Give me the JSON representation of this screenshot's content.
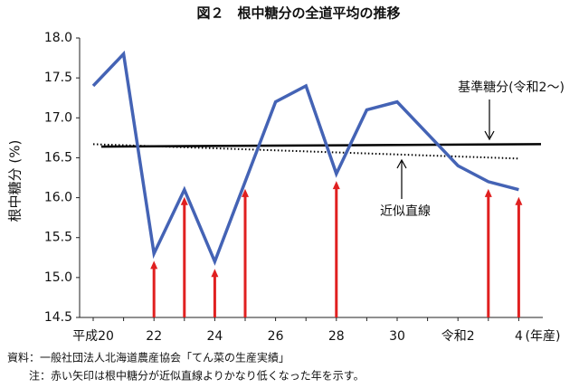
{
  "chart_data": {
    "type": "line",
    "title": "図２　根中糖分の全道平均の推移",
    "categories": [
      "平成20",
      null,
      "22",
      null,
      "24",
      null,
      "26",
      null,
      "28",
      null,
      "30",
      null,
      "令和2",
      null,
      "4"
    ],
    "x_label": "(年産)",
    "y_label": "根中糖分 (%)",
    "series": [
      {
        "color": "#4463b5",
        "values": [
          17.4,
          17.8,
          15.3,
          16.1,
          15.2,
          16.2,
          17.2,
          17.4,
          16.3,
          17.1,
          17.2,
          16.8,
          16.4,
          16.2,
          16.1
        ]
      }
    ],
    "baseline": {
      "name": "基準糖分(令和2～)",
      "values": [
        16.64,
        16.67
      ],
      "color": "#000000"
    },
    "trend": {
      "name": "近似直線",
      "values": [
        16.67,
        16.49
      ],
      "color": "#000000"
    },
    "highlight": [
      2,
      3,
      4,
      5,
      8,
      13,
      14
    ],
    "highlight_color": "#e02020",
    "ylim": [
      14.5,
      18
    ],
    "yticks": [
      {
        "value": 14.5,
        "label": "14.5"
      },
      {
        "value": 15,
        "label": "15.0"
      },
      15.5,
      {
        "value": 16,
        "label": "16.0"
      },
      16.5,
      {
        "value": 17,
        "label": "17.0"
      },
      17.5,
      {
        "value": 18,
        "label": "18.0"
      }
    ],
    "notes": [
      "資料：一般社団法人北海道農産協会「てん菜の生産実績」",
      "注：赤い矢印は根中糖分が近似直線よりかなり低くなった年を示す。"
    ]
  }
}
